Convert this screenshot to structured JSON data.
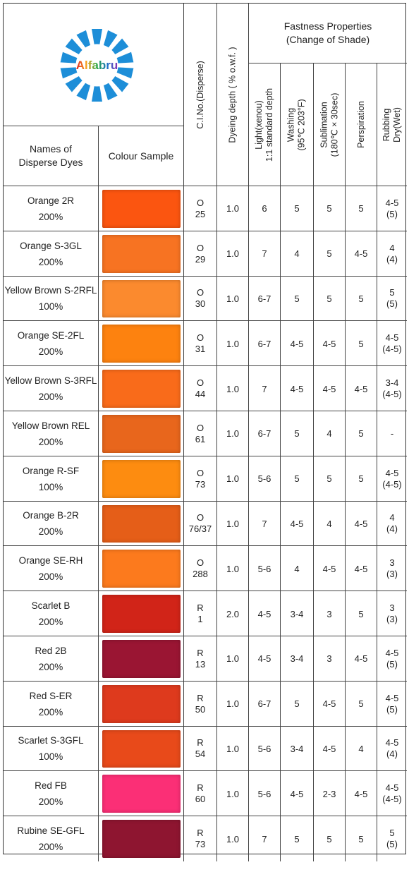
{
  "header": {
    "logo_text": "Alfabru",
    "names_label_line1": "Names of",
    "names_label_line2": "Disperse Dyes",
    "sample_label": "Colour Sample",
    "ci_label": "C.I.No.(Disperse)",
    "depth_label": "Dyeing depth ( % o.w.f. )",
    "fastness_line1": "Fastness Properties",
    "fastness_line2": "(Change of Shade)",
    "light_line1": "Light(xenou)",
    "light_line2": "1:1 standard depth",
    "washing_line1": "Washing",
    "washing_line2": "(95℃ 203°F)",
    "sublimation_line1": "Sublimation",
    "sublimation_line2": "(180℃ × 30sec)",
    "perspiration": "Perspiration",
    "rubbing_line1": "Rubbing",
    "rubbing_line2": "Dry(Wet)"
  },
  "rows": [
    {
      "name": "Orange 2R",
      "strength": "200%",
      "swatch": "#fb5510",
      "ci_letter": "O",
      "ci_num": "25",
      "depth": "1.0",
      "light": "6",
      "washing": "5",
      "sublimation": "5",
      "perspiration": "5",
      "rub_dry": "4-5",
      "rub_wet": "(5)"
    },
    {
      "name": "Orange S-3GL",
      "strength": "200%",
      "swatch": "#f77322",
      "ci_letter": "O",
      "ci_num": "29",
      "depth": "1.0",
      "light": "7",
      "washing": "4",
      "sublimation": "5",
      "perspiration": "4-5",
      "rub_dry": "4",
      "rub_wet": "(4)"
    },
    {
      "name": "Yellow Brown S-2RFL",
      "strength": "100%",
      "swatch": "#fb8a2e",
      "ci_letter": "O",
      "ci_num": "30",
      "depth": "1.0",
      "light": "6-7",
      "washing": "5",
      "sublimation": "5",
      "perspiration": "5",
      "rub_dry": "5",
      "rub_wet": "(5)"
    },
    {
      "name": "Orange SE-2FL",
      "strength": "200%",
      "swatch": "#fd820f",
      "ci_letter": "O",
      "ci_num": "31",
      "depth": "1.0",
      "light": "6-7",
      "washing": "4-5",
      "sublimation": "4-5",
      "perspiration": "5",
      "rub_dry": "4-5",
      "rub_wet": "(4-5)"
    },
    {
      "name": "Yellow Brown S-3RFL",
      "strength": "200%",
      "swatch": "#f96b1a",
      "ci_letter": "O",
      "ci_num": "44",
      "depth": "1.0",
      "light": "7",
      "washing": "4-5",
      "sublimation": "4-5",
      "perspiration": "4-5",
      "rub_dry": "3-4",
      "rub_wet": "(4-5)"
    },
    {
      "name": "Yellow Brown REL",
      "strength": "200%",
      "swatch": "#e8661c",
      "ci_letter": "O",
      "ci_num": "61",
      "depth": "1.0",
      "light": "6-7",
      "washing": "5",
      "sublimation": "4",
      "perspiration": "5",
      "rub_dry": "-",
      "rub_wet": ""
    },
    {
      "name": "Orange R-SF",
      "strength": "100%",
      "swatch": "#fd8c10",
      "ci_letter": "O",
      "ci_num": "73",
      "depth": "1.0",
      "light": "5-6",
      "washing": "5",
      "sublimation": "5",
      "perspiration": "5",
      "rub_dry": "4-5",
      "rub_wet": "(4-5)"
    },
    {
      "name": "Orange B-2R",
      "strength": "200%",
      "swatch": "#e55e18",
      "ci_letter": "O",
      "ci_num": "76/37",
      "depth": "1.0",
      "light": "7",
      "washing": "4-5",
      "sublimation": "4",
      "perspiration": "4-5",
      "rub_dry": "4",
      "rub_wet": "(4)"
    },
    {
      "name": "Orange SE-RH",
      "strength": "200%",
      "swatch": "#fc7a1d",
      "ci_letter": "O",
      "ci_num": "288",
      "depth": "1.0",
      "light": "5-6",
      "washing": "4",
      "sublimation": "4-5",
      "perspiration": "4-5",
      "rub_dry": "3",
      "rub_wet": "(3)"
    },
    {
      "name": "Scarlet B",
      "strength": "200%",
      "swatch": "#d12418",
      "ci_letter": "R",
      "ci_num": "1",
      "depth": "2.0",
      "light": "4-5",
      "washing": "3-4",
      "sublimation": "3",
      "perspiration": "5",
      "rub_dry": "3",
      "rub_wet": "(3)"
    },
    {
      "name": "Red 2B",
      "strength": "200%",
      "swatch": "#9a1533",
      "ci_letter": "R",
      "ci_num": "13",
      "depth": "1.0",
      "light": "4-5",
      "washing": "3-4",
      "sublimation": "3",
      "perspiration": "4-5",
      "rub_dry": "4-5",
      "rub_wet": "(5)"
    },
    {
      "name": "Red S-ER",
      "strength": "200%",
      "swatch": "#de3a1d",
      "ci_letter": "R",
      "ci_num": "50",
      "depth": "1.0",
      "light": "6-7",
      "washing": "5",
      "sublimation": "4-5",
      "perspiration": "5",
      "rub_dry": "4-5",
      "rub_wet": "(5)"
    },
    {
      "name": "Scarlet S-3GFL",
      "strength": "100%",
      "swatch": "#e84a1a",
      "ci_letter": "R",
      "ci_num": "54",
      "depth": "1.0",
      "light": "5-6",
      "washing": "3-4",
      "sublimation": "4-5",
      "perspiration": "4",
      "rub_dry": "4-5",
      "rub_wet": "(4)"
    },
    {
      "name": "Red FB",
      "strength": "200%",
      "swatch": "#fb2f76",
      "ci_letter": "R",
      "ci_num": "60",
      "depth": "1.0",
      "light": "5-6",
      "washing": "4-5",
      "sublimation": "2-3",
      "perspiration": "4-5",
      "rub_dry": "4-5",
      "rub_wet": "(4-5)"
    },
    {
      "name": "Rubine SE-GFL",
      "strength": "200%",
      "swatch": "#8e1530",
      "ci_letter": "R",
      "ci_num": "73",
      "depth": "1.0",
      "light": "7",
      "washing": "5",
      "sublimation": "5",
      "perspiration": "5",
      "rub_dry": "5",
      "rub_wet": "(5)"
    }
  ]
}
